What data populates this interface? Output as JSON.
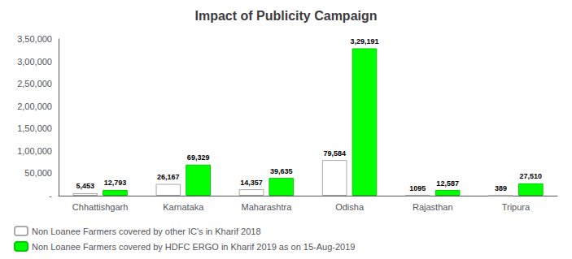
{
  "chart_data": {
    "type": "bar",
    "title": "Impact of Publicity Campaign",
    "categories": [
      "Chhattishgarh",
      "Karnataka",
      "Maharashtra",
      "Odisha",
      "Rajasthan",
      "Tripura"
    ],
    "series": [
      {
        "name": "Non Loanee Farmers covered by other IC's in Kharif 2018",
        "color": "#FFFFFF",
        "values": [
          5453,
          26167,
          14357,
          79584,
          1095,
          389
        ],
        "value_labels": [
          "5,453",
          "26,167",
          "14,357",
          "79,584",
          "1095",
          "389"
        ]
      },
      {
        "name": "Non Loanee Farmers covered by HDFC ERGO in Kharif 2019 as on 15-Aug-2019",
        "color": "#00FF00",
        "values": [
          12793,
          69329,
          39635,
          329191,
          12587,
          27510
        ],
        "value_labels": [
          "12,793",
          "69,329",
          "39,635",
          "3,29,191",
          "12,587",
          "27,510"
        ]
      }
    ],
    "ylim": [
      0,
      350000
    ],
    "yticks": [
      {
        "value": 0,
        "label": "-"
      },
      {
        "value": 50000,
        "label": "50,000"
      },
      {
        "value": 100000,
        "label": "1,00,000"
      },
      {
        "value": 150000,
        "label": "1,50,000"
      },
      {
        "value": 200000,
        "label": "2,00,000"
      },
      {
        "value": 250000,
        "label": "2,50,000"
      },
      {
        "value": 300000,
        "label": "3,00,000"
      },
      {
        "value": 350000,
        "label": "3,50,000"
      }
    ],
    "grid": false,
    "legend": "bottom",
    "data_labels": true
  }
}
